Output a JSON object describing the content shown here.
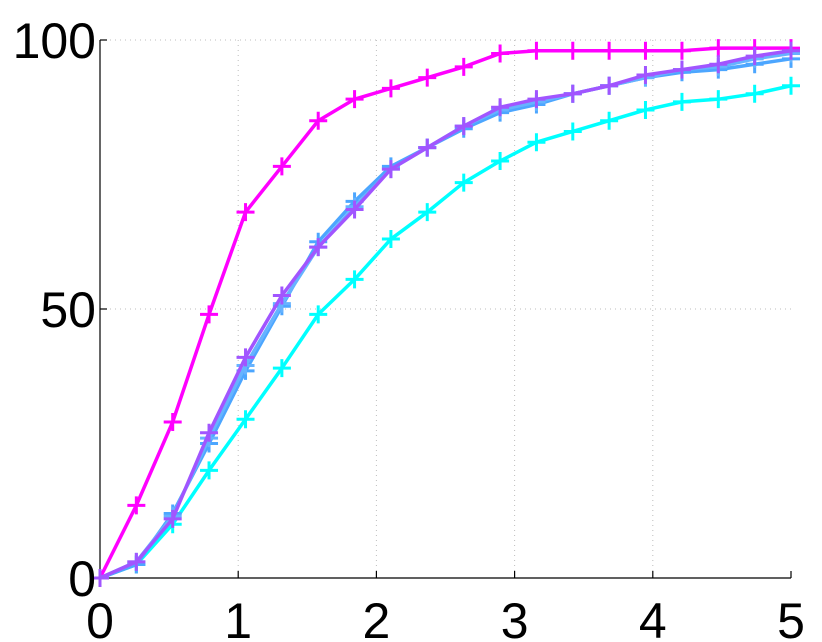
{
  "chart_data": {
    "type": "line",
    "title": "",
    "xlabel": "",
    "ylabel": "",
    "xlim": [
      0,
      5
    ],
    "ylim": [
      0,
      100
    ],
    "x_ticks": [
      "0",
      "1",
      "2",
      "3",
      "4",
      "5"
    ],
    "y_ticks": [
      "0",
      "50",
      "100"
    ],
    "grid": true,
    "marker": "plus",
    "x": [
      0,
      0.263,
      0.526,
      0.789,
      1.053,
      1.316,
      1.579,
      1.842,
      2.105,
      2.368,
      2.632,
      2.895,
      3.158,
      3.421,
      3.684,
      3.947,
      4.211,
      4.474,
      4.737,
      5.0
    ],
    "series": [
      {
        "color": "#ff00ff",
        "values": [
          0,
          13.5,
          29,
          49,
          68,
          76.5,
          85,
          89,
          91,
          93,
          95,
          97.5,
          98,
          98,
          98,
          98,
          98,
          98.5,
          98.5,
          98.5
        ]
      },
      {
        "color": "#00ffff",
        "values": [
          0,
          2.5,
          10,
          20,
          29.5,
          39,
          49,
          55.5,
          63,
          68,
          73.5,
          77.5,
          81,
          83,
          85,
          87,
          88.5,
          89,
          90,
          91.5
        ]
      },
      {
        "color": "#4ca6ff",
        "values": [
          0,
          2.5,
          12,
          25,
          38.5,
          50.5,
          62.5,
          70,
          76.5,
          80,
          83.5,
          86.5,
          88,
          90,
          91.5,
          93,
          94,
          94.5,
          95.5,
          96.5
        ]
      },
      {
        "color": "#66b3ff",
        "values": [
          0,
          3,
          11.5,
          26,
          39.5,
          51,
          61.5,
          69,
          76,
          80,
          84,
          87,
          88.5,
          90,
          91.5,
          93,
          94.5,
          95,
          96.5,
          97.5
        ]
      },
      {
        "color": "#a155ff",
        "values": [
          0,
          3,
          11,
          27,
          41,
          52.5,
          61.5,
          68.5,
          76,
          80,
          84,
          87.5,
          89,
          90,
          91.5,
          93.5,
          94.5,
          95.5,
          97,
          98
        ]
      }
    ]
  }
}
